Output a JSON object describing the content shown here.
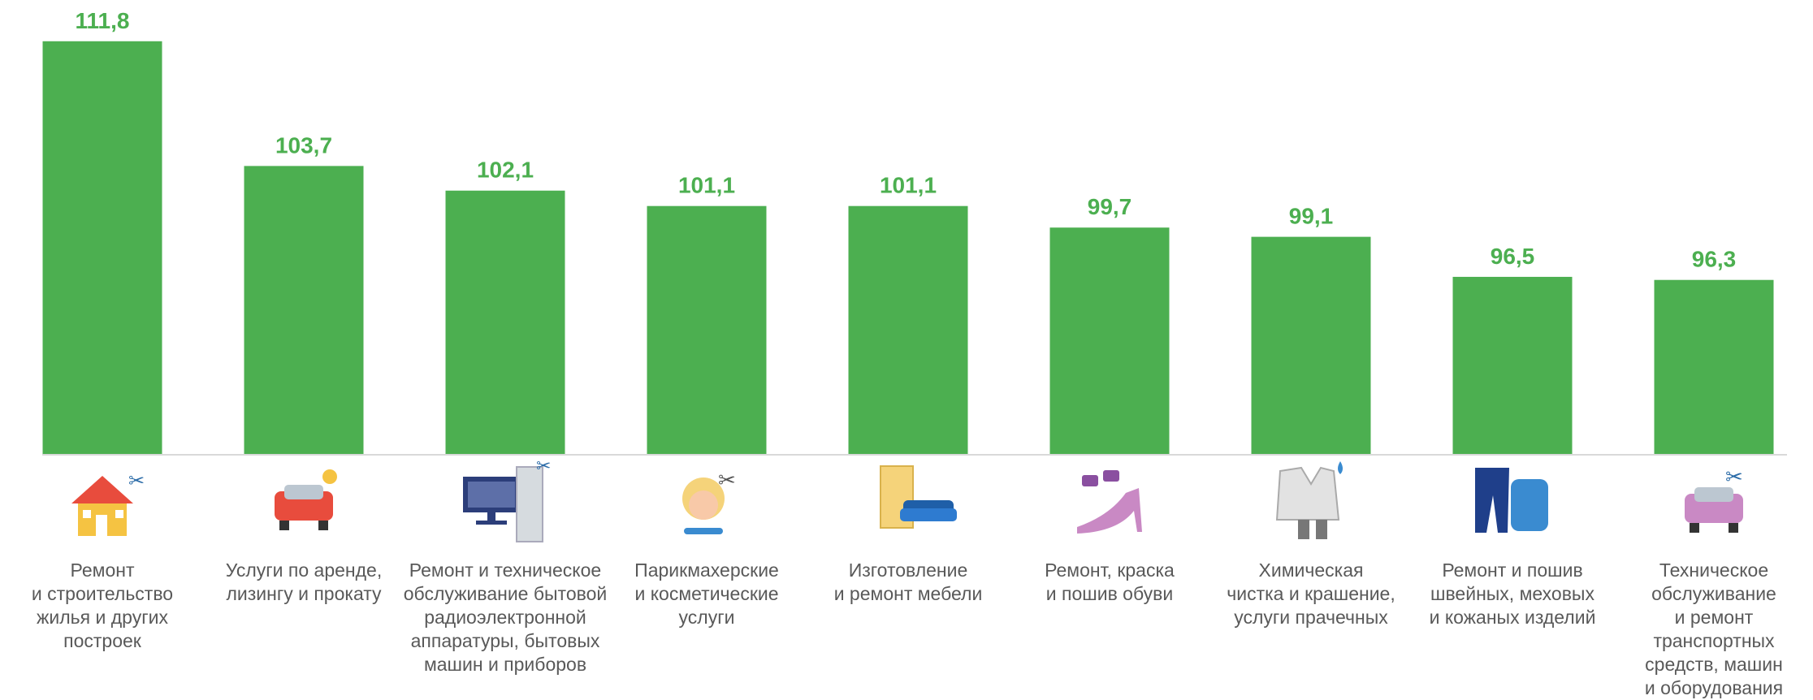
{
  "chart_data": {
    "type": "bar",
    "categories": [
      "Ремонт\nи строительство\nжилья и других\nпостроек",
      "Услуги по аренде,\nлизингу и прокату",
      "Ремонт и техническое\nобслуживание бытовой\nрадиоэлектронной\nаппаратуры, бытовых\nмашин и приборов",
      "Парикмахерские\nи косметические\nуслуги",
      "Изготовление\nи ремонт мебели",
      "Ремонт, краска\nи пошив обуви",
      "Химическая\nчистка и крашение,\nуслуги прачечных",
      "Ремонт и пошив\nшвейных, меховых\nи кожаных изделий",
      "Техническое\nобслуживание\nи ремонт\nтранспортных\nсредств, машин\nи оборудования"
    ],
    "values": [
      111.8,
      103.7,
      102.1,
      101.1,
      101.1,
      99.7,
      99.1,
      96.5,
      96.3
    ],
    "value_labels": [
      "111,8",
      "103,7",
      "102,1",
      "101,1",
      "101,1",
      "99,7",
      "99,1",
      "96,5",
      "96,3"
    ],
    "color": "#4caf50",
    "ylim": [
      85,
      112
    ]
  }
}
